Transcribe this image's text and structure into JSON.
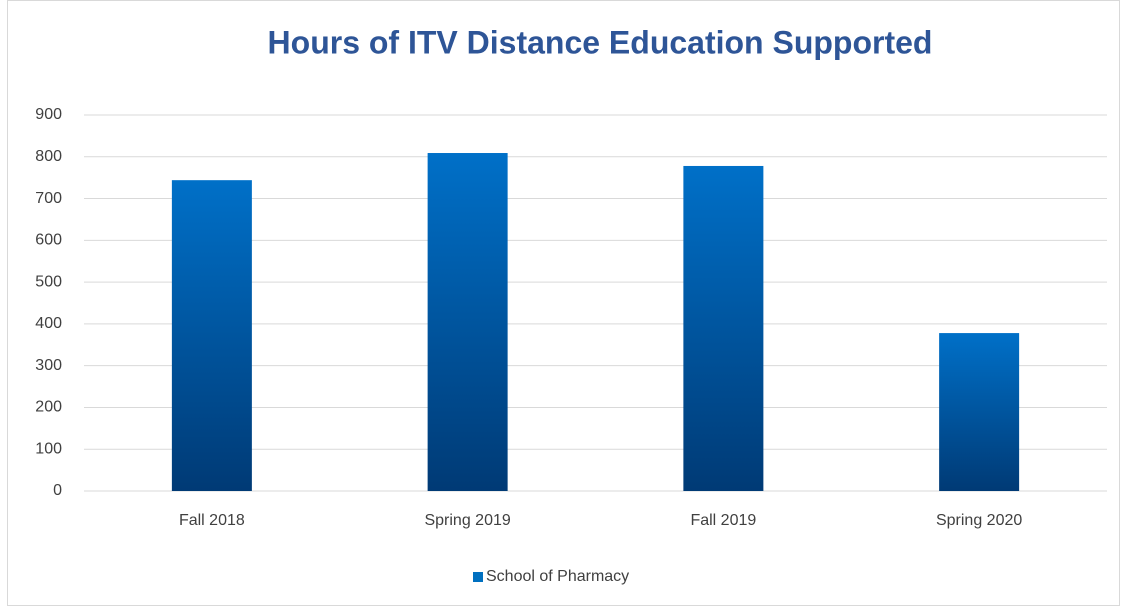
{
  "chart_data": {
    "type": "bar",
    "title": "Hours of ITV Distance Education Supported",
    "categories": [
      "Fall 2018",
      "Spring 2019",
      "Fall 2019",
      "Spring 2020"
    ],
    "series": [
      {
        "name": "School of Pharmacy",
        "color": "#0070c0",
        "values": [
          744,
          809,
          778,
          378
        ]
      }
    ],
    "ylim": [
      0,
      900
    ],
    "yticks": [
      0,
      100,
      200,
      300,
      400,
      500,
      600,
      700,
      800,
      900
    ],
    "grid": true,
    "legend": "bottom"
  }
}
